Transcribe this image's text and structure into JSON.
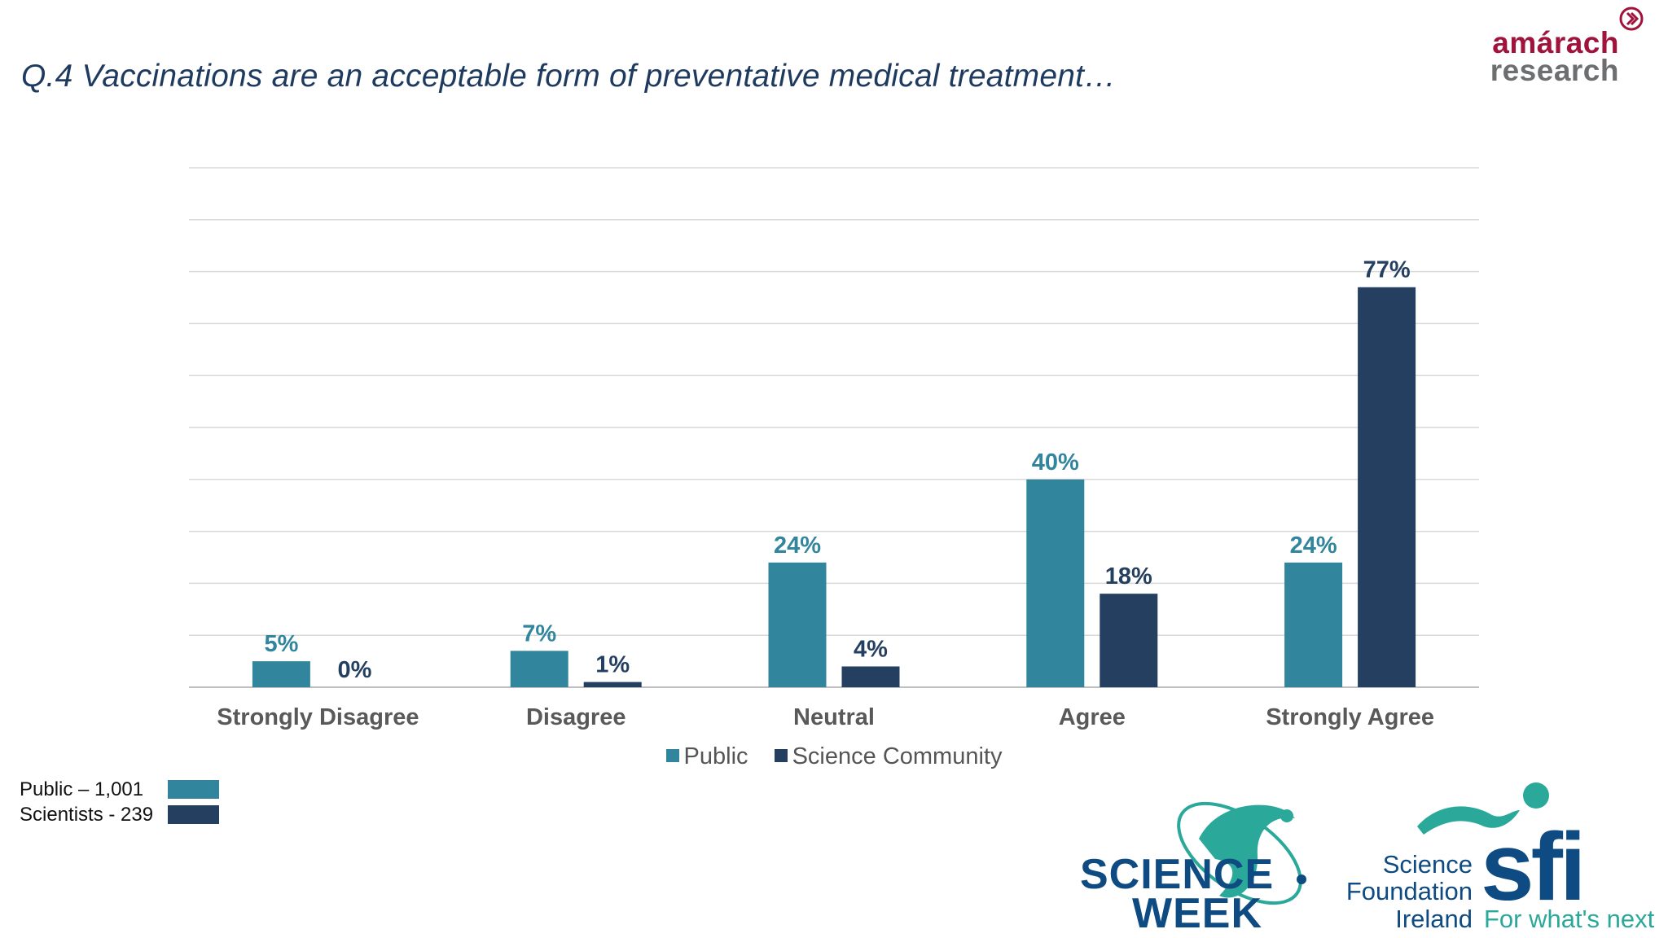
{
  "header": {
    "title": "Q.4 Vaccinations are an acceptable form of preventative medical treatment…",
    "brand_line1": "amárach",
    "brand_line2": "research"
  },
  "chart_data": {
    "type": "bar",
    "categories": [
      "Strongly Disagree",
      "Disagree",
      "Neutral",
      "Agree",
      "Strongly Agree"
    ],
    "series": [
      {
        "name": "Public",
        "values": [
          5,
          7,
          24,
          40,
          24
        ],
        "labels": [
          "5%",
          "7%",
          "24%",
          "40%",
          "24%"
        ],
        "color": "#31859c"
      },
      {
        "name": "Science Community",
        "values": [
          0,
          1,
          4,
          18,
          77
        ],
        "labels": [
          "0%",
          "1%",
          "4%",
          "18%",
          "77%"
        ],
        "color": "#243f60"
      }
    ],
    "ylim": [
      0,
      100
    ],
    "grid": true,
    "legend": "bottom"
  },
  "samples": [
    {
      "label": "Public – 1,001",
      "color": "#31859c"
    },
    {
      "label": "Scientists - 239",
      "color": "#243f60"
    }
  ],
  "logos": {
    "science_week_line1": "SCIENCE",
    "science_week_line2": "WEEK",
    "sfi_words": [
      "Science",
      "Foundation",
      "Ireland"
    ],
    "sfi_mark": "sfi",
    "sfi_tagline": "For what's next"
  },
  "colors": {
    "public": "#31859c",
    "science": "#243f60",
    "title": "#1f3a5f",
    "grid": "#d9d9d9"
  }
}
